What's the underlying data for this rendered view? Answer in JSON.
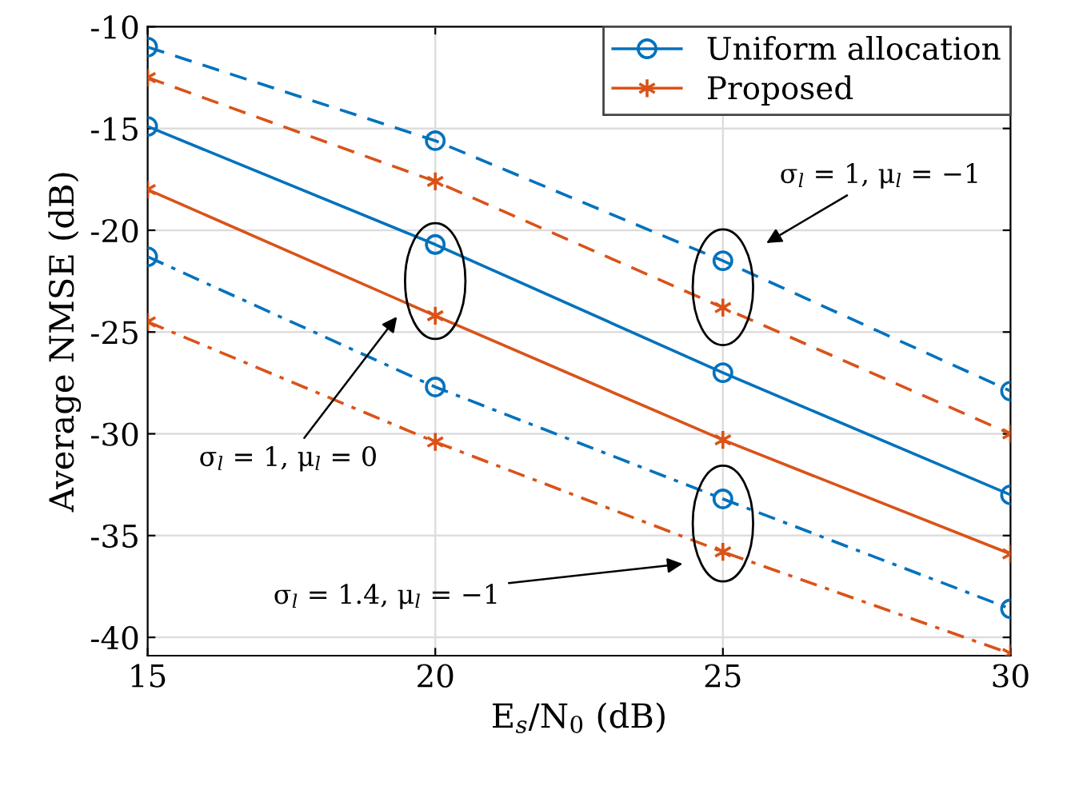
{
  "chart_data": {
    "type": "line",
    "xlabel": "E$_{s}$/N$_{0}$ (dB)",
    "ylabel": "Average NMSE (dB)",
    "x": [
      15,
      20,
      25,
      30
    ],
    "xlim": [
      15,
      30
    ],
    "xticks": [
      15,
      20,
      25,
      30
    ],
    "ylim": [
      -40.9,
      -10
    ],
    "yticks": [
      -40,
      -35,
      -30,
      -25,
      -20,
      -15,
      -10
    ],
    "grid": true,
    "legend": "top right",
    "series": [
      {
        "name": "Uniform allocation",
        "color": "#0072bd",
        "marker": "circle",
        "line_style": "solid",
        "values": [
          -14.9,
          -20.7,
          -27.0,
          -33.0
        ]
      },
      {
        "name": "Proposed",
        "color": "#d95319",
        "marker": "cross",
        "line_style": "solid",
        "values": [
          -18.0,
          -24.2,
          -30.3,
          -35.9
        ]
      },
      {
        "color": "#0072bd",
        "marker": "circle",
        "line_style": "dashed",
        "values": [
          -11.0,
          -15.6,
          -21.5,
          -27.9
        ]
      },
      {
        "color": "#d95319",
        "marker": "cross",
        "line_style": "dashed",
        "values": [
          -12.5,
          -17.6,
          -23.8,
          -30.0
        ]
      },
      {
        "color": "#0072bd",
        "marker": "circle",
        "line_style": "dashdot",
        "values": [
          -21.3,
          -27.7,
          -33.2,
          -38.6
        ]
      },
      {
        "color": "#d95319",
        "marker": "cross",
        "line_style": "dashdot",
        "values": [
          -24.5,
          -30.4,
          -35.8,
          -40.8
        ]
      }
    ],
    "annotations": [
      "σ$_{l}$ = 1, μ$_{l}$ = −1",
      "σ$_{l}$ = 1, μ$_{l}$ = 0",
      "σ$_{l}$ = 1.4, μ$_{l}$ = −1"
    ]
  }
}
